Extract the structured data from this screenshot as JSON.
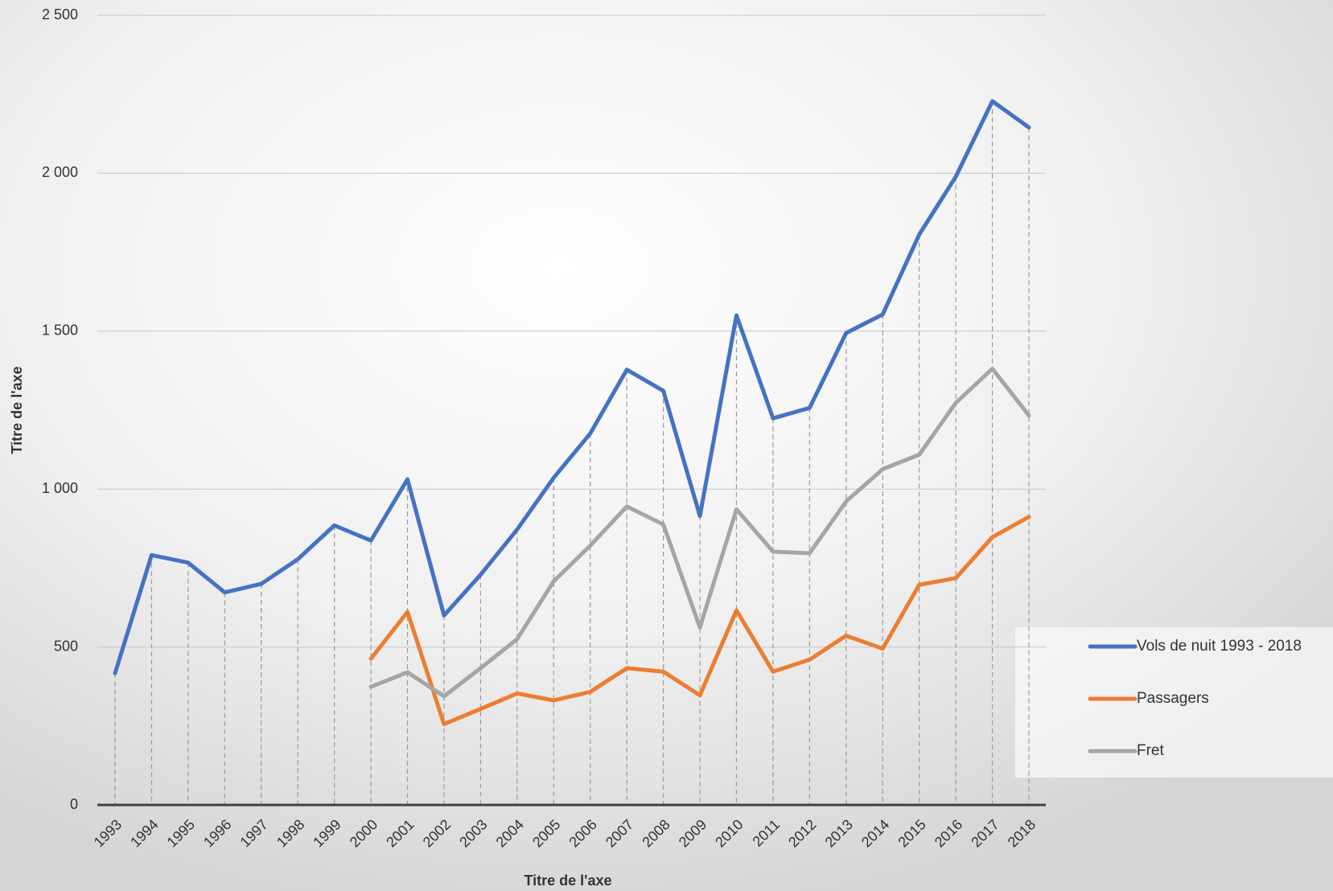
{
  "chart_data": {
    "type": "line",
    "x_label": "Titre de l'axe",
    "y_label": "Titre de l'axe",
    "categories": [
      "1993",
      "1994",
      "1995",
      "1996",
      "1997",
      "1998",
      "1999",
      "2000",
      "2001",
      "2002",
      "2003",
      "2004",
      "2005",
      "2006",
      "2007",
      "2008",
      "2009",
      "2010",
      "2011",
      "2012",
      "2013",
      "2014",
      "2015",
      "2016",
      "2017",
      "2018"
    ],
    "series": [
      {
        "name": "Vols de nuit 1993  - 2018",
        "color": "#4472c4",
        "values": [
          417,
          791,
          767,
          673,
          700,
          778,
          885,
          837,
          1031,
          600,
          729,
          872,
          1036,
          1176,
          1378,
          1311,
          915,
          1550,
          1224,
          1257,
          1494,
          1553,
          1806,
          1989,
          2228,
          2145
        ]
      },
      {
        "name": "Passagers",
        "color": "#ed7d31",
        "values": [
          null,
          null,
          null,
          null,
          null,
          null,
          null,
          463,
          611,
          256,
          304,
          353,
          331,
          358,
          433,
          422,
          347,
          616,
          422,
          460,
          536,
          495,
          697,
          718,
          848,
          912
        ]
      },
      {
        "name": "Fret",
        "color": "#a5a5a5",
        "values": [
          null,
          null,
          null,
          null,
          null,
          null,
          null,
          374,
          420,
          344,
          433,
          525,
          708,
          821,
          945,
          888,
          562,
          936,
          802,
          797,
          961,
          1063,
          1109,
          1273,
          1381,
          1233
        ]
      }
    ],
    "ylim": [
      0,
      2500
    ],
    "yticks": [
      0,
      500,
      {
        "value": 1000,
        "label": "1 000"
      },
      {
        "value": 1500,
        "label": "1 500"
      },
      {
        "value": 2000,
        "label": "2 000"
      },
      {
        "value": 2500,
        "label": "2 500"
      }
    ],
    "grid": true,
    "drop_lines": true,
    "legend": "right"
  }
}
